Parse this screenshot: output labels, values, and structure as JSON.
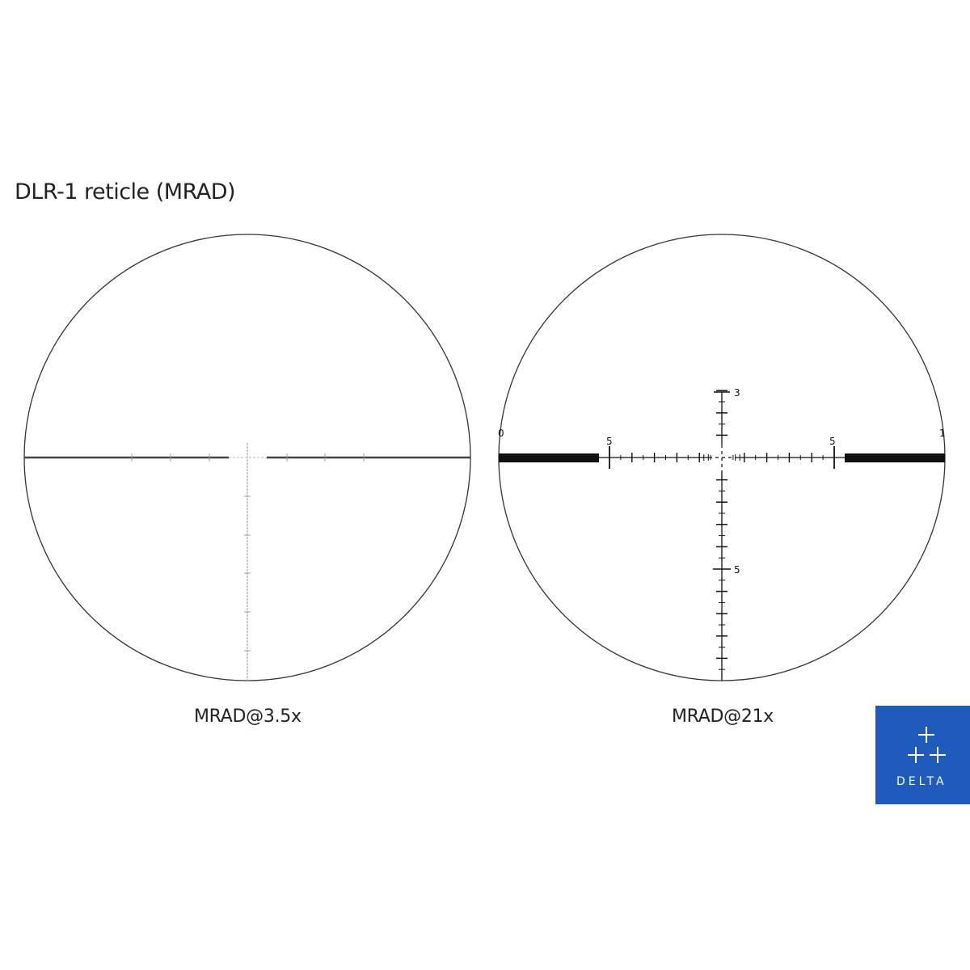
{
  "title": "DLR-1 reticle (MRAD)",
  "reticles": [
    {
      "caption": "MRAD@3.5x"
    },
    {
      "caption": "MRAD@21x",
      "labels": {
        "left_edge": "0",
        "right_edge": "1",
        "h_left": "5",
        "h_right": "5",
        "v_top": "3",
        "v_bottom": "5"
      }
    }
  ],
  "logo": {
    "text": "DELTA",
    "color": "#1f5bbd"
  }
}
